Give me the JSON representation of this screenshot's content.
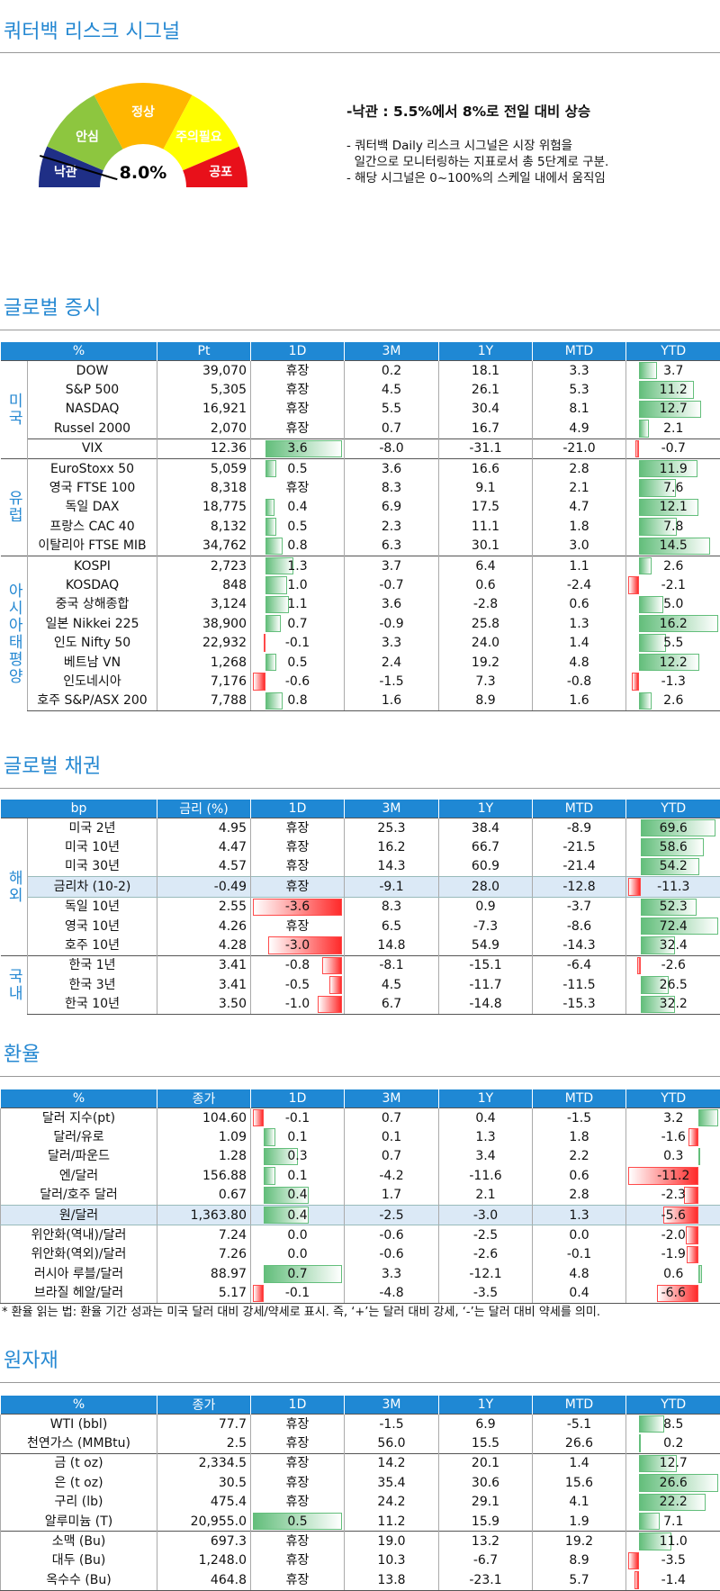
{
  "header": {
    "title": "쿼터백 리스크 시그널"
  },
  "gauge": {
    "segments": [
      "낙관",
      "안심",
      "정상",
      "주의필요",
      "공포"
    ],
    "value_label": "8.0%",
    "headline": "-낙관 : 5.5%에서 8%로 전일 대비 상승",
    "notes": [
      "- 쿼터백 Daily 리스크 시그널은 시장 위험을",
      "  일간으로 모니터링하는 지표로서 총 5단계로 구분.",
      "- 해당 시그널은 0~100%의 스케일 내에서 움직임"
    ]
  },
  "sections": [
    {
      "title": "글로벌 증시",
      "table": {
        "header": [
          "%",
          "Pt",
          "1D",
          "3M",
          "1Y",
          "MTD",
          "YTD"
        ],
        "groups": [
          {
            "label": "미국",
            "rows": [
              [
                "DOW",
                "39,070",
                "휴장",
                "0.2",
                "18.1",
                "3.3",
                "3.7"
              ],
              [
                "S&P 500",
                "5,305",
                "휴장",
                "4.5",
                "26.1",
                "5.3",
                "11.2"
              ],
              [
                "NASDAQ",
                "16,921",
                "휴장",
                "5.5",
                "30.4",
                "8.1",
                "12.7"
              ],
              [
                "Russel 2000",
                "2,070",
                "휴장",
                "0.7",
                "16.7",
                "4.9",
                "2.1"
              ],
              [
                "VIX",
                "12.36",
                "3.6",
                "-8.0",
                "-31.1",
                "-21.0",
                "-0.7"
              ]
            ]
          },
          {
            "label": "유럽",
            "rows": [
              [
                "EuroStoxx 50",
                "5,059",
                "0.5",
                "3.6",
                "16.6",
                "2.8",
                "11.9"
              ],
              [
                "영국 FTSE 100",
                "8,318",
                "휴장",
                "8.3",
                "9.1",
                "2.1",
                "7.6"
              ],
              [
                "독일 DAX",
                "18,775",
                "0.4",
                "6.9",
                "17.5",
                "4.7",
                "12.1"
              ],
              [
                "프랑스 CAC 40",
                "8,132",
                "0.5",
                "2.3",
                "11.1",
                "1.8",
                "7.8"
              ],
              [
                "이탈리아 FTSE MIB",
                "34,762",
                "0.8",
                "6.3",
                "30.1",
                "3.0",
                "14.5"
              ]
            ]
          },
          {
            "label": "아시아태평양",
            "rows": [
              [
                "KOSPI",
                "2,723",
                "1.3",
                "3.7",
                "6.4",
                "1.1",
                "2.6"
              ],
              [
                "KOSDAQ",
                "848",
                "1.0",
                "-0.7",
                "0.6",
                "-2.4",
                "-2.1"
              ],
              [
                "중국 상해종합",
                "3,124",
                "1.1",
                "3.6",
                "-2.8",
                "0.6",
                "5.0"
              ],
              [
                "일본 Nikkei 225",
                "38,900",
                "0.7",
                "-0.9",
                "25.8",
                "1.3",
                "16.2"
              ],
              [
                "인도 Nifty 50",
                "22,932",
                "-0.1",
                "3.3",
                "24.0",
                "1.4",
                "5.5"
              ],
              [
                "베트남 VN",
                "1,268",
                "0.5",
                "2.4",
                "19.2",
                "4.8",
                "12.2"
              ],
              [
                "인도네시아",
                "7,176",
                "-0.6",
                "-1.5",
                "7.3",
                "-0.8",
                "-1.3"
              ],
              [
                "호주 S&P/ASX 200",
                "7,788",
                "0.8",
                "1.6",
                "8.9",
                "1.6",
                "2.6"
              ]
            ]
          }
        ]
      }
    },
    {
      "title": "글로벌 채권",
      "table": {
        "header": [
          "bp",
          "금리 (%)",
          "1D",
          "3M",
          "1Y",
          "MTD",
          "YTD"
        ],
        "groups": [
          {
            "label": "해외",
            "rows": [
              [
                "미국 2년",
                "4.95",
                "휴장",
                "25.3",
                "38.4",
                "-8.9",
                "69.6"
              ],
              [
                "미국 10년",
                "4.47",
                "휴장",
                "16.2",
                "66.7",
                "-21.5",
                "58.6"
              ],
              [
                "미국 30년",
                "4.57",
                "휴장",
                "14.3",
                "60.9",
                "-21.4",
                "54.2"
              ],
              [
                "금리차 (10-2)",
                "-0.49",
                "휴장",
                "-9.1",
                "28.0",
                "-12.8",
                "-11.3"
              ],
              [
                "독일 10년",
                "2.55",
                "-3.6",
                "8.3",
                "0.9",
                "-3.7",
                "52.3"
              ],
              [
                "영국 10년",
                "4.26",
                "휴장",
                "6.5",
                "-7.3",
                "-8.6",
                "72.4"
              ],
              [
                "호주 10년",
                "4.28",
                "-3.0",
                "14.8",
                "54.9",
                "-14.3",
                "32.4"
              ]
            ]
          },
          {
            "label": "국내",
            "rows": [
              [
                "한국 1년",
                "3.41",
                "-0.8",
                "-8.1",
                "-15.1",
                "-6.4",
                "-2.6"
              ],
              [
                "한국 3년",
                "3.41",
                "-0.5",
                "4.5",
                "-11.7",
                "-11.5",
                "26.5"
              ],
              [
                "한국 10년",
                "3.50",
                "-1.0",
                "6.7",
                "-14.8",
                "-15.3",
                "32.2"
              ]
            ]
          }
        ]
      }
    },
    {
      "title": "환율",
      "table": {
        "header": [
          "%",
          "종가",
          "1D",
          "3M",
          "1Y",
          "MTD",
          "YTD"
        ],
        "groups": [
          {
            "rows": [
              [
                "달러 지수(pt)",
                "104.60",
                "-0.1",
                "0.7",
                "0.4",
                "-1.5",
                "3.2"
              ],
              [
                "달러/유로",
                "1.09",
                "0.1",
                "0.1",
                "1.3",
                "1.8",
                "-1.6"
              ],
              [
                "달러/파운드",
                "1.28",
                "0.3",
                "0.7",
                "3.4",
                "2.2",
                "0.3"
              ],
              [
                "엔/달러",
                "156.88",
                "0.1",
                "-4.2",
                "-11.6",
                "0.6",
                "-11.2"
              ],
              [
                "달러/호주 달러",
                "0.67",
                "0.4",
                "1.7",
                "2.1",
                "2.8",
                "-2.3"
              ],
              [
                "원/달러",
                "1,363.80",
                "0.4",
                "-2.5",
                "-3.0",
                "1.3",
                "-5.6"
              ],
              [
                "위안화(역내)/달러",
                "7.24",
                "0.0",
                "-0.6",
                "-2.5",
                "0.0",
                "-2.0"
              ],
              [
                "위안화(역외)/달러",
                "7.26",
                "0.0",
                "-0.6",
                "-2.6",
                "-0.1",
                "-1.9"
              ],
              [
                "러시아 루블/달러",
                "88.97",
                "0.7",
                "3.3",
                "-12.1",
                "4.8",
                "0.6"
              ],
              [
                "브라질 헤알/달러",
                "5.17",
                "-0.1",
                "-4.8",
                "-3.5",
                "0.4",
                "-6.6"
              ]
            ]
          }
        ]
      },
      "footnote": "* 환율 읽는 법: 환율 기간 성과는 미국 달러 대비 강세/약세로 표시. 즉, ‘+’는 달러 대비 강세, ‘-’는 달러 대비 약세를 의미."
    },
    {
      "title": "원자재",
      "table": {
        "header": [
          "%",
          "종가",
          "1D",
          "3M",
          "1Y",
          "MTD",
          "YTD"
        ],
        "groups": [
          {
            "rows": [
              [
                "WTI (bbl)",
                "77.7",
                "휴장",
                "-1.5",
                "6.9",
                "-5.1",
                "8.5"
              ],
              [
                "천연가스 (MMBtu)",
                "2.5",
                "휴장",
                "56.0",
                "15.5",
                "26.6",
                "0.2"
              ],
              [
                "금 (t oz)",
                "2,334.5",
                "휴장",
                "14.2",
                "20.1",
                "1.4",
                "12.7"
              ],
              [
                "은 (t oz)",
                "30.5",
                "휴장",
                "35.4",
                "30.6",
                "15.6",
                "26.6"
              ],
              [
                "구리 (lb)",
                "475.4",
                "휴장",
                "24.2",
                "29.1",
                "4.1",
                "22.2"
              ],
              [
                "알루미늄 (T)",
                "20,955.0",
                "0.5",
                "11.2",
                "15.9",
                "1.9",
                "7.1"
              ],
              [
                "소맥 (Bu)",
                "697.3",
                "휴장",
                "19.0",
                "13.2",
                "19.2",
                "11.0"
              ],
              [
                "대두 (Bu)",
                "1,248.0",
                "휴장",
                "10.3",
                "-6.7",
                "8.9",
                "-3.5"
              ],
              [
                "옥수수 (Bu)",
                "464.8",
                "휴장",
                "13.8",
                "-23.1",
                "5.7",
                "-1.4"
              ]
            ]
          }
        ]
      }
    }
  ]
}
